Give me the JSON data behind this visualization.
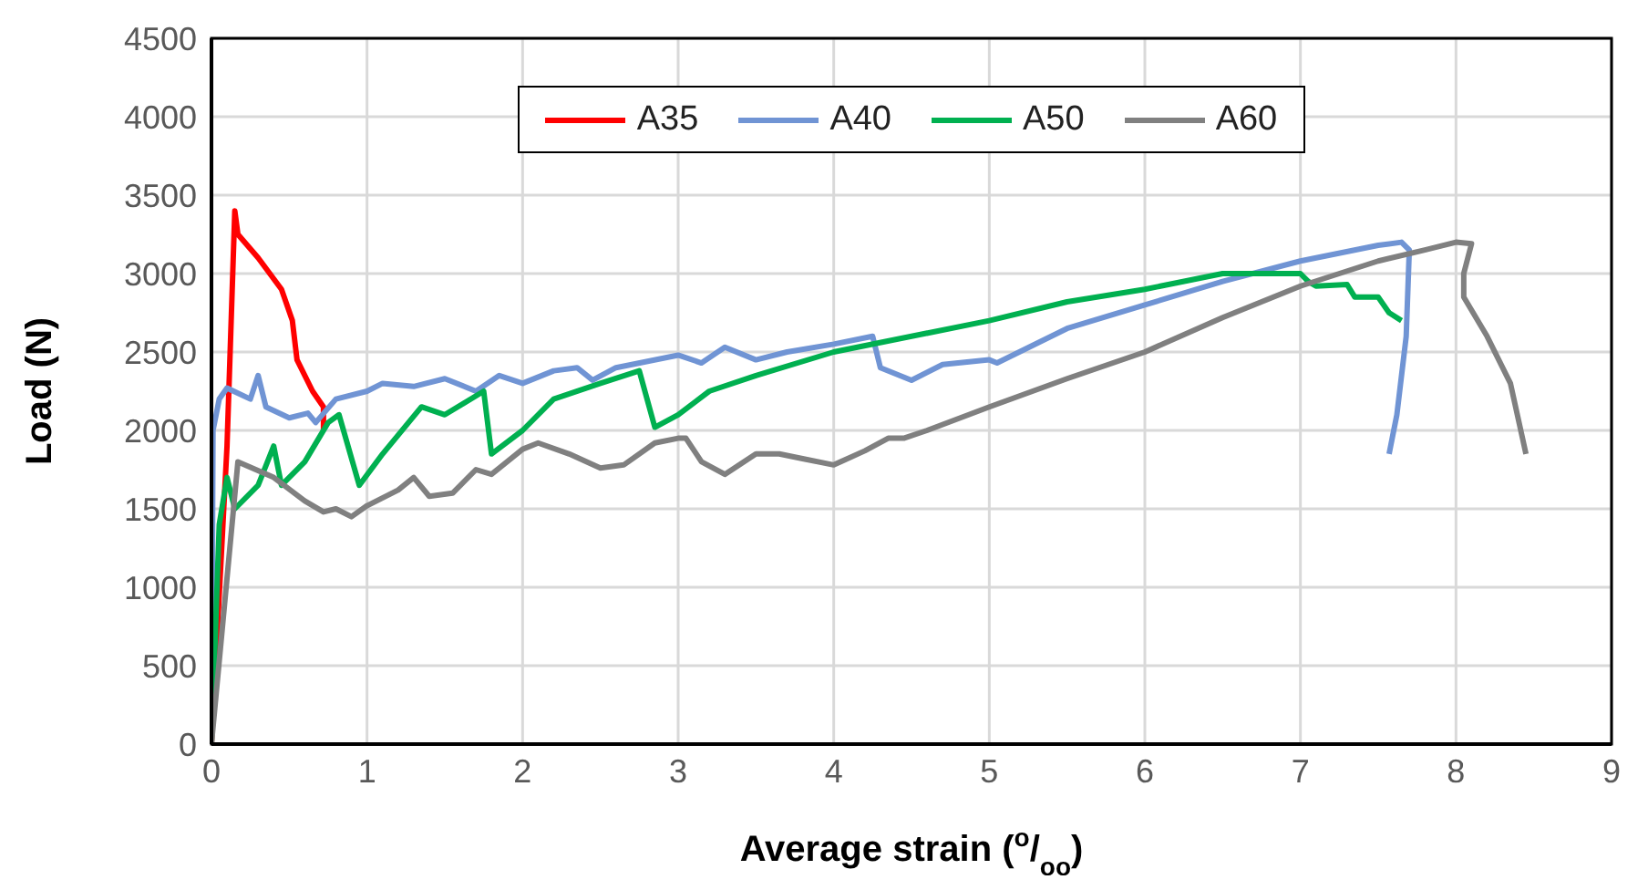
{
  "chart_data": {
    "type": "line",
    "xlabel": "Average strain ($^{o}$/$_{oo}$)",
    "ylabel": "Load (N)",
    "xlim": [
      0,
      9
    ],
    "xticks": [
      0,
      1,
      2,
      3,
      4,
      5,
      6,
      7,
      8,
      9
    ],
    "ylim": [
      0,
      4500
    ],
    "yticks": [
      0,
      500,
      1000,
      1500,
      2000,
      2500,
      3000,
      3500,
      4000,
      4500
    ],
    "grid": true,
    "legend": "top",
    "marker": "none",
    "line_style": "solid",
    "series": [
      {
        "name": "A35",
        "color": "#ff0000",
        "x": [
          0,
          0.1,
          0.15,
          0.17,
          0.3,
          0.45,
          0.52,
          0.55,
          0.65,
          0.72,
          0.72
        ],
        "values": [
          0,
          1900,
          3400,
          3250,
          3100,
          2900,
          2700,
          2450,
          2250,
          2150,
          2000
        ]
      },
      {
        "name": "A40",
        "color": "#7094d4",
        "x": [
          0,
          0.01,
          0.05,
          0.1,
          0.25,
          0.3,
          0.35,
          0.5,
          0.62,
          0.67,
          0.8,
          1,
          1.1,
          1.3,
          1.5,
          1.7,
          1.85,
          2,
          2.2,
          2.35,
          2.45,
          2.6,
          3,
          3.15,
          3.3,
          3.5,
          3.7,
          4,
          4.25,
          4.3,
          4.5,
          4.7,
          5,
          5.05,
          5.5,
          6,
          6.5,
          7,
          7.5,
          7.65,
          7.7,
          7.68,
          7.62,
          7.57
        ],
        "values": [
          0,
          2000,
          2200,
          2270,
          2200,
          2350,
          2150,
          2080,
          2110,
          2050,
          2200,
          2250,
          2300,
          2280,
          2330,
          2250,
          2350,
          2300,
          2380,
          2400,
          2320,
          2400,
          2480,
          2430,
          2530,
          2450,
          2500,
          2550,
          2600,
          2400,
          2320,
          2420,
          2450,
          2430,
          2650,
          2800,
          2950,
          3080,
          3180,
          3200,
          3150,
          2600,
          2100,
          1850
        ]
      },
      {
        "name": "A50",
        "color": "#00b050",
        "x": [
          0,
          0.05,
          0.1,
          0.15,
          0.3,
          0.4,
          0.45,
          0.6,
          0.75,
          0.82,
          0.95,
          1.1,
          1.35,
          1.5,
          1.75,
          1.8,
          2,
          2.2,
          2.5,
          2.75,
          2.85,
          3,
          3.2,
          3.5,
          4,
          4.5,
          5,
          5.5,
          6,
          6.5,
          7,
          7.05,
          7.1,
          7.3,
          7.35,
          7.5,
          7.57,
          7.65
        ],
        "values": [
          0,
          1400,
          1700,
          1500,
          1650,
          1900,
          1650,
          1800,
          2050,
          2100,
          1650,
          1850,
          2150,
          2100,
          2250,
          1850,
          2000,
          2200,
          2300,
          2380,
          2020,
          2100,
          2250,
          2350,
          2500,
          2600,
          2700,
          2820,
          2900,
          3000,
          3000,
          2950,
          2920,
          2930,
          2850,
          2850,
          2750,
          2700
        ]
      },
      {
        "name": "A60",
        "color": "#808080",
        "x": [
          0,
          0.17,
          0.4,
          0.6,
          0.72,
          0.8,
          0.9,
          1,
          1.2,
          1.3,
          1.4,
          1.55,
          1.7,
          1.8,
          2,
          2.1,
          2.3,
          2.5,
          2.65,
          2.85,
          3,
          3.05,
          3.15,
          3.3,
          3.5,
          3.65,
          3.8,
          4,
          4.2,
          4.35,
          4.45,
          4.6,
          5,
          5.5,
          6,
          6.5,
          7,
          7.5,
          7.8,
          8,
          8.1,
          8.05,
          8.05,
          8.2,
          8.35,
          8.45
        ],
        "values": [
          0,
          1800,
          1700,
          1550,
          1480,
          1500,
          1450,
          1520,
          1620,
          1700,
          1580,
          1600,
          1750,
          1720,
          1880,
          1920,
          1850,
          1760,
          1780,
          1920,
          1950,
          1950,
          1800,
          1720,
          1850,
          1850,
          1820,
          1780,
          1870,
          1950,
          1950,
          2000,
          2150,
          2330,
          2500,
          2720,
          2920,
          3080,
          3150,
          3200,
          3190,
          3000,
          2850,
          2600,
          2300,
          1850
        ]
      }
    ]
  }
}
